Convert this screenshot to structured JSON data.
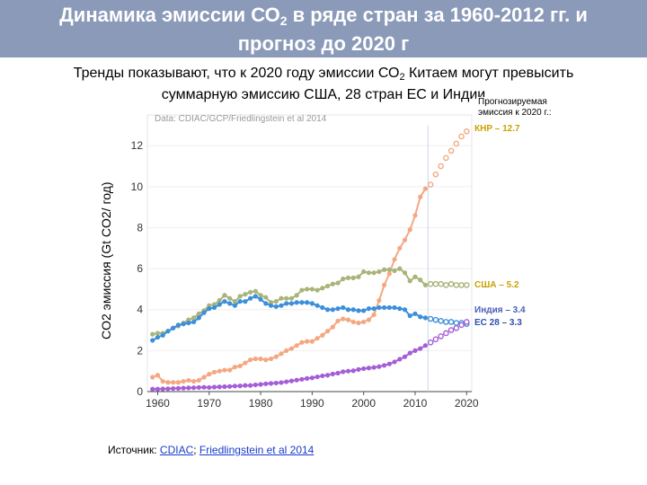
{
  "slide": {
    "title_line1_a": "Динамика эмиссии СО",
    "title_line1_sub": "2",
    "title_line1_b": " в ряде стран за 1960-2012 гг.  и",
    "title_line2": "прогноз до 2020 г",
    "subtitle_line1_a": "Тренды показывают, что к 2020 году эмиссии СО",
    "subtitle_line1_sub": "2",
    "subtitle_line1_b": " Китаем  могут превысить",
    "subtitle_line2": "суммарную эмиссию США, 28 стран ЕС и Индии",
    "source_prefix": "Источник: ",
    "source_link1": "CDIAC",
    "source_sep": "; ",
    "source_link2": "Friedlingstein et al 2014"
  },
  "chart_data": {
    "type": "line",
    "title": "Data: CDIAC/GCP/Friedlingstein et al 2014",
    "ylabel": "CO2 эмиссия (Gt CO2/ год)",
    "xlabel": "",
    "xlim": [
      1958,
      2021
    ],
    "ylim": [
      0,
      13.5
    ],
    "xticks": [
      1960,
      1970,
      1980,
      1990,
      2000,
      2010,
      2020
    ],
    "yticks": [
      0,
      2,
      4,
      6,
      8,
      10,
      12
    ],
    "projection_start": 2013,
    "legend_header": "Прогнозируемая эмиссия к 2020 г.:",
    "series": [
      {
        "name": "КНР – 12.7",
        "color": "#f4a882",
        "x": [
          1959,
          1960,
          1961,
          1962,
          1963,
          1964,
          1965,
          1966,
          1967,
          1968,
          1969,
          1970,
          1971,
          1972,
          1973,
          1974,
          1975,
          1976,
          1977,
          1978,
          1979,
          1980,
          1981,
          1982,
          1983,
          1984,
          1985,
          1986,
          1987,
          1988,
          1989,
          1990,
          1991,
          1992,
          1993,
          1994,
          1995,
          1996,
          1997,
          1998,
          1999,
          2000,
          2001,
          2002,
          2003,
          2004,
          2005,
          2006,
          2007,
          2008,
          2009,
          2010,
          2011,
          2012
        ],
        "values": [
          0.7,
          0.8,
          0.5,
          0.45,
          0.45,
          0.45,
          0.5,
          0.55,
          0.5,
          0.55,
          0.7,
          0.85,
          0.95,
          1.0,
          1.05,
          1.05,
          1.2,
          1.25,
          1.4,
          1.55,
          1.6,
          1.6,
          1.55,
          1.6,
          1.7,
          1.85,
          2.0,
          2.1,
          2.25,
          2.4,
          2.45,
          2.45,
          2.6,
          2.75,
          2.95,
          3.15,
          3.45,
          3.55,
          3.5,
          3.4,
          3.35,
          3.4,
          3.5,
          3.75,
          4.45,
          5.2,
          5.75,
          6.45,
          7.0,
          7.4,
          7.9,
          8.6,
          9.5,
          9.9
        ],
        "projection_x": [
          2013,
          2014,
          2015,
          2016,
          2017,
          2018,
          2019,
          2020
        ],
        "projection_values": [
          10.1,
          10.6,
          11.0,
          11.4,
          11.75,
          12.1,
          12.45,
          12.7
        ]
      },
      {
        "name": "США – 5.2",
        "color": "#a9b47a",
        "x": [
          1959,
          1960,
          1961,
          1962,
          1963,
          1964,
          1965,
          1966,
          1967,
          1968,
          1969,
          1970,
          1971,
          1972,
          1973,
          1974,
          1975,
          1976,
          1977,
          1978,
          1979,
          1980,
          1981,
          1982,
          1983,
          1984,
          1985,
          1986,
          1987,
          1988,
          1989,
          1990,
          1991,
          1992,
          1993,
          1994,
          1995,
          1996,
          1997,
          1998,
          1999,
          2000,
          2001,
          2002,
          2003,
          2004,
          2005,
          2006,
          2007,
          2008,
          2009,
          2010,
          2011,
          2012
        ],
        "values": [
          2.8,
          2.85,
          2.85,
          2.95,
          3.1,
          3.2,
          3.35,
          3.5,
          3.6,
          3.8,
          3.95,
          4.2,
          4.25,
          4.45,
          4.7,
          4.55,
          4.4,
          4.65,
          4.75,
          4.85,
          4.9,
          4.7,
          4.6,
          4.35,
          4.4,
          4.55,
          4.55,
          4.55,
          4.7,
          4.95,
          5.0,
          5.0,
          4.95,
          5.05,
          5.15,
          5.25,
          5.3,
          5.5,
          5.55,
          5.55,
          5.6,
          5.85,
          5.8,
          5.8,
          5.85,
          5.95,
          5.95,
          5.9,
          6.0,
          5.8,
          5.4,
          5.6,
          5.45,
          5.2
        ],
        "projection_x": [
          2013,
          2014,
          2015,
          2016,
          2017,
          2018,
          2019,
          2020
        ],
        "projection_values": [
          5.25,
          5.25,
          5.25,
          5.2,
          5.25,
          5.2,
          5.2,
          5.2
        ]
      },
      {
        "name": "ЕС 28 – 3.3",
        "color": "#3c8fdb",
        "x": [
          1959,
          1960,
          1961,
          1962,
          1963,
          1964,
          1965,
          1966,
          1967,
          1968,
          1969,
          1970,
          1971,
          1972,
          1973,
          1974,
          1975,
          1976,
          1977,
          1978,
          1979,
          1980,
          1981,
          1982,
          1983,
          1984,
          1985,
          1986,
          1987,
          1988,
          1989,
          1990,
          1991,
          1992,
          1993,
          1994,
          1995,
          1996,
          1997,
          1998,
          1999,
          2000,
          2001,
          2002,
          2003,
          2004,
          2005,
          2006,
          2007,
          2008,
          2009,
          2010,
          2011,
          2012
        ],
        "values": [
          2.5,
          2.65,
          2.75,
          2.95,
          3.1,
          3.25,
          3.3,
          3.35,
          3.4,
          3.6,
          3.85,
          4.05,
          4.1,
          4.25,
          4.4,
          4.3,
          4.2,
          4.4,
          4.4,
          4.55,
          4.65,
          4.5,
          4.3,
          4.2,
          4.15,
          4.2,
          4.3,
          4.3,
          4.35,
          4.35,
          4.35,
          4.3,
          4.2,
          4.1,
          4.0,
          4.0,
          4.05,
          4.1,
          4.0,
          4.0,
          3.95,
          3.95,
          4.05,
          4.05,
          4.1,
          4.1,
          4.1,
          4.1,
          4.05,
          4.0,
          3.7,
          3.8,
          3.65,
          3.6
        ],
        "projection_x": [
          2013,
          2014,
          2015,
          2016,
          2017,
          2018,
          2019,
          2020
        ],
        "projection_values": [
          3.55,
          3.5,
          3.45,
          3.4,
          3.4,
          3.35,
          3.35,
          3.3
        ]
      },
      {
        "name": "Индия – 3.4",
        "color": "#a55ed6",
        "x": [
          1959,
          1960,
          1961,
          1962,
          1963,
          1964,
          1965,
          1966,
          1967,
          1968,
          1969,
          1970,
          1971,
          1972,
          1973,
          1974,
          1975,
          1976,
          1977,
          1978,
          1979,
          1980,
          1981,
          1982,
          1983,
          1984,
          1985,
          1986,
          1987,
          1988,
          1989,
          1990,
          1991,
          1992,
          1993,
          1994,
          1995,
          1996,
          1997,
          1998,
          1999,
          2000,
          2001,
          2002,
          2003,
          2004,
          2005,
          2006,
          2007,
          2008,
          2009,
          2010,
          2011,
          2012
        ],
        "values": [
          0.12,
          0.12,
          0.13,
          0.14,
          0.15,
          0.16,
          0.17,
          0.18,
          0.19,
          0.2,
          0.21,
          0.2,
          0.22,
          0.23,
          0.24,
          0.25,
          0.27,
          0.28,
          0.3,
          0.3,
          0.33,
          0.35,
          0.38,
          0.4,
          0.42,
          0.44,
          0.48,
          0.52,
          0.56,
          0.6,
          0.64,
          0.67,
          0.72,
          0.77,
          0.8,
          0.86,
          0.9,
          0.97,
          1.0,
          1.02,
          1.08,
          1.12,
          1.15,
          1.18,
          1.22,
          1.28,
          1.35,
          1.45,
          1.58,
          1.7,
          1.88,
          2.0,
          2.1,
          2.25
        ],
        "projection_x": [
          2013,
          2014,
          2015,
          2016,
          2017,
          2018,
          2019,
          2020
        ],
        "projection_values": [
          2.4,
          2.55,
          2.7,
          2.85,
          3.0,
          3.1,
          3.25,
          3.4
        ]
      }
    ]
  }
}
